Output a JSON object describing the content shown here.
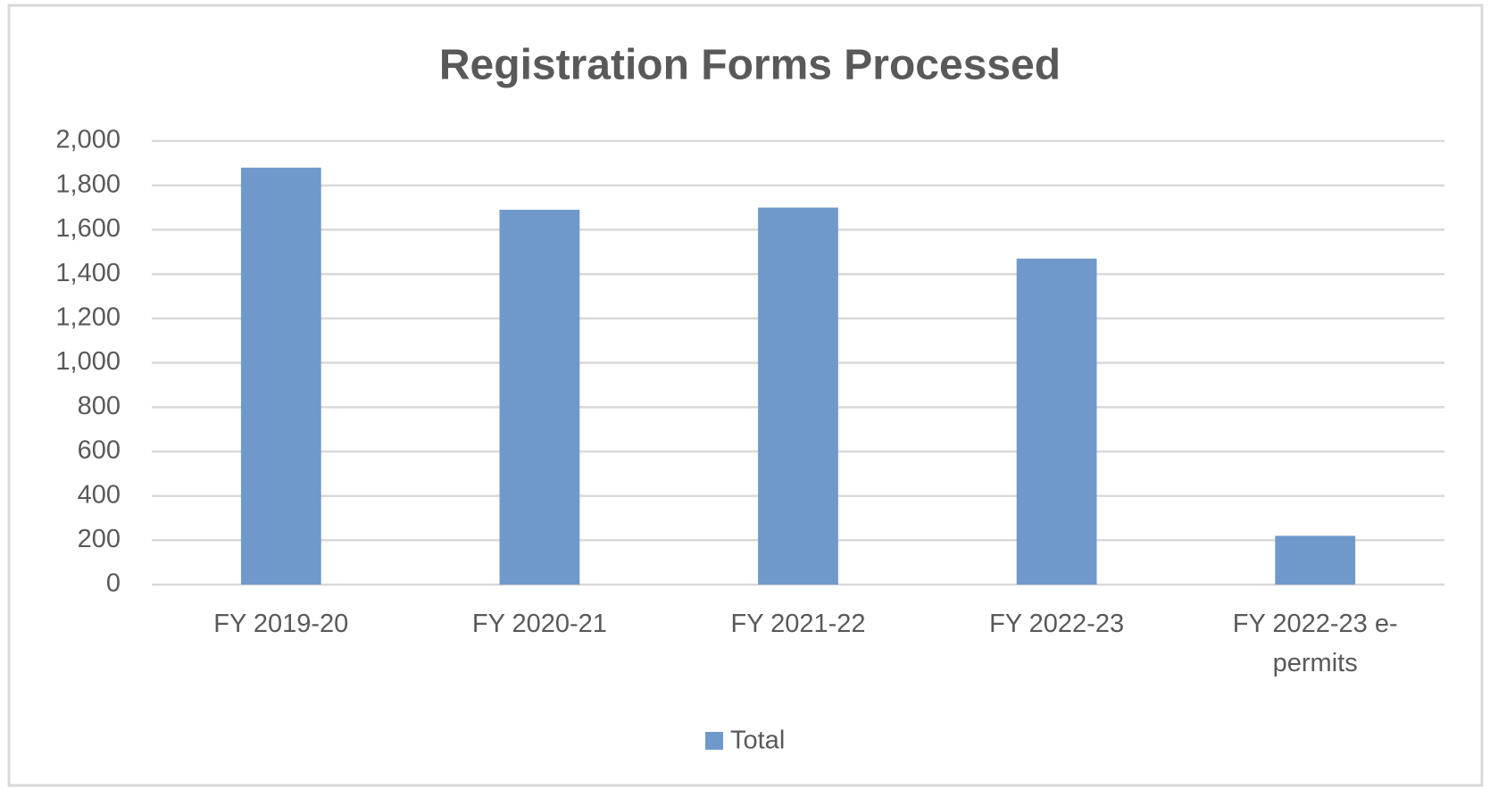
{
  "chart_data": {
    "type": "bar",
    "title": "Registration Forms Processed",
    "categories": [
      "FY 2019-20",
      "FY 2020-21",
      "FY 2021-22",
      "FY 2022-23",
      "FY 2022-23 e-permits"
    ],
    "series": [
      {
        "name": "Total",
        "color": "#7099cb",
        "values": [
          1880,
          1690,
          1700,
          1470,
          220
        ]
      }
    ],
    "ylim": [
      0,
      2000
    ],
    "yticks": [
      0,
      200,
      400,
      600,
      800,
      {
        "value": 1000,
        "label": "1,000"
      },
      {
        "value": 1200,
        "label": "1,200"
      },
      {
        "value": 1400,
        "label": "1,400"
      },
      {
        "value": 1600,
        "label": "1,600"
      },
      {
        "value": 1800,
        "label": "1,800"
      },
      {
        "value": 2000,
        "label": "2,000"
      }
    ],
    "grid": true,
    "legend": "bottom"
  }
}
